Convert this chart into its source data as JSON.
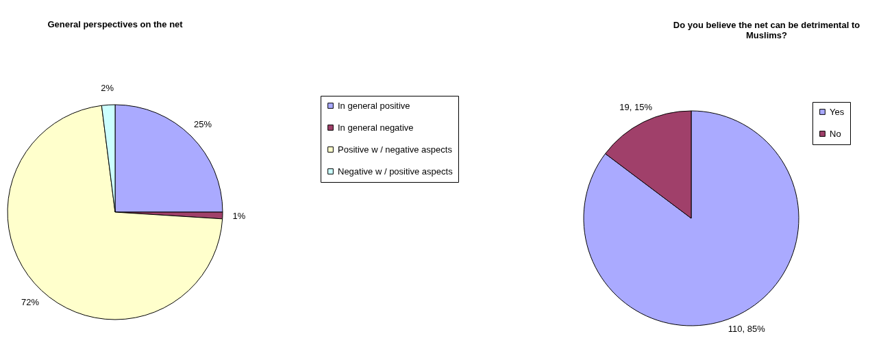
{
  "chart_data": [
    {
      "type": "pie",
      "title": "General perspectives on the net",
      "categories": [
        "In general positive",
        "In general negative",
        "Positive w / negative aspects",
        "Negative w / positive aspects"
      ],
      "values": [
        25,
        1,
        72,
        2
      ],
      "colors": [
        "#aaaaff",
        "#a0406a",
        "#ffffcc",
        "#ccffff"
      ],
      "value_labels": [
        "25%",
        "1%",
        "72%",
        "2%"
      ],
      "legend": "right"
    },
    {
      "type": "pie",
      "title": "Do you believe the net can be detrimental to Muslims?",
      "categories": [
        "Yes",
        "No"
      ],
      "values": [
        110,
        19
      ],
      "colors": [
        "#aaaaff",
        "#a0406a"
      ],
      "value_labels": [
        "110, 85%",
        "19, 15%"
      ],
      "legend": "right"
    }
  ]
}
